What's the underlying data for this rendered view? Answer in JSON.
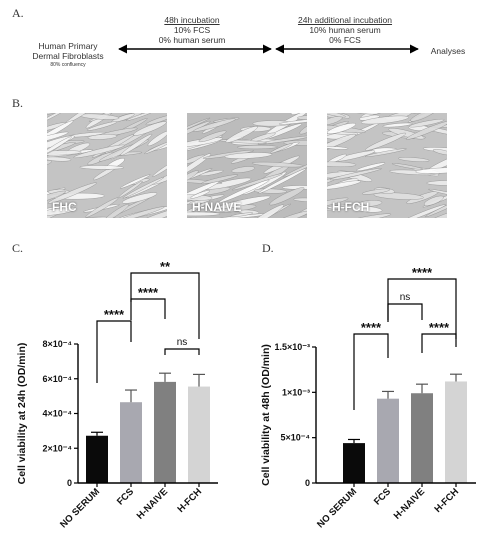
{
  "panels": {
    "a": "A.",
    "b": "B.",
    "c": "C.",
    "d": "D."
  },
  "timeline": {
    "start_label_1": "Human Primary",
    "start_label_2": "Dermal Fibroblasts",
    "start_sub": "80% confluency",
    "step1_title": "48h incubation",
    "step1_line1": "10% FCS",
    "step1_line2": "0% human serum",
    "step2_title": "24h additional incubation",
    "step2_line1": "10% human serum",
    "step2_line2": "0% FCS",
    "end_label": "Analyses"
  },
  "micrographs": [
    {
      "label": "FHC"
    },
    {
      "label": "H-NAIVE"
    },
    {
      "label": "H-FCH"
    }
  ],
  "colors": {
    "no_serum": "#0a0a0a",
    "fcs": "#a8a8b0",
    "h_naive": "#808080",
    "h_fch": "#d4d4d4",
    "axis": "#000000"
  },
  "chart_data": [
    {
      "type": "bar",
      "panel": "C",
      "categories": [
        "NO SERUM",
        "FCS",
        "H-NAIVE",
        "H-FCH"
      ],
      "values": [
        0.000272,
        0.000465,
        0.000582,
        0.000555
      ],
      "errors": [
        2e-05,
        7e-05,
        5e-05,
        7e-05
      ],
      "ylabel": "Cell viability at 24h (OD/min)",
      "ylim": [
        0,
        0.0008
      ],
      "ytick_values": [
        0,
        0.0002,
        0.0004,
        0.0006,
        0.0008
      ],
      "ytick_labels": [
        "0",
        "2×10⁻⁴",
        "4×10⁻⁴",
        "6×10⁻⁴",
        "8×10⁻⁴"
      ],
      "significance": [
        {
          "from": 0,
          "to": 1,
          "label": "****"
        },
        {
          "from": 1,
          "to": 2,
          "label": "****"
        },
        {
          "from": 2,
          "to": 3,
          "label": "ns"
        },
        {
          "from": 1,
          "to": 3,
          "label": "**"
        }
      ]
    },
    {
      "type": "bar",
      "panel": "D",
      "categories": [
        "NO SERUM",
        "FCS",
        "H-NAIVE",
        "H-FCH"
      ],
      "values": [
        0.00044,
        0.00093,
        0.00099,
        0.00112
      ],
      "errors": [
        4e-05,
        8e-05,
        0.0001,
        8e-05
      ],
      "ylabel": "Cell viability at 48h (OD/min)",
      "ylim": [
        0,
        0.0015
      ],
      "ytick_values": [
        0,
        0.0005,
        0.001,
        0.0015
      ],
      "ytick_labels": [
        "0",
        "5×10⁻⁴",
        "1×10⁻³",
        "1.5×10⁻³"
      ],
      "significance": [
        {
          "from": 0,
          "to": 1,
          "label": "****"
        },
        {
          "from": 1,
          "to": 2,
          "label": "ns"
        },
        {
          "from": 2,
          "to": 3,
          "label": "****"
        },
        {
          "from": 1,
          "to": 3,
          "label": "****"
        }
      ]
    }
  ]
}
